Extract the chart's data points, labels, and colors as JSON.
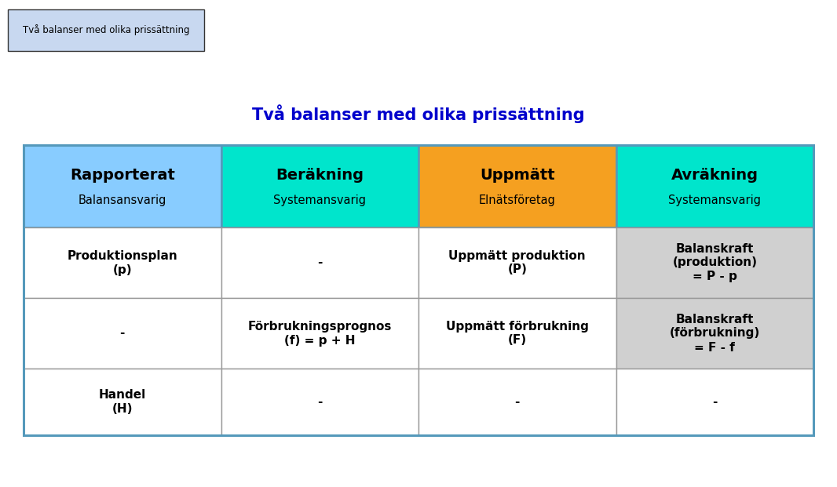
{
  "title": "Två balanser med olika prissättning",
  "title_color": "#0000CC",
  "title_fontsize": 15,
  "tab_label": "Två balanser med olika prissättning",
  "tab_bg": "#C8D8F0",
  "tab_edge": "#333333",
  "headers": [
    {
      "line1": "Rapporterat",
      "line2": "Balansansvarig",
      "bg": "#88CCFF"
    },
    {
      "line1": "Beräkning",
      "line2": "Systemansvarig",
      "bg": "#00E5CC"
    },
    {
      "line1": "Uppmätt",
      "line2": "Elnätsföretag",
      "bg": "#F5A020"
    },
    {
      "line1": "Avräkning",
      "line2": "Systemansvarig",
      "bg": "#00E5CC"
    }
  ],
  "rows": [
    [
      {
        "text": "Produktionsplan\n(p)",
        "bg": "#FFFFFF"
      },
      {
        "text": "-",
        "bg": "#FFFFFF"
      },
      {
        "text": "Uppmätt produktion\n(P)",
        "bg": "#FFFFFF"
      },
      {
        "text": "Balanskraft\n(produktion)\n= P - p",
        "bg": "#D0D0D0"
      }
    ],
    [
      {
        "text": "-",
        "bg": "#FFFFFF"
      },
      {
        "text": "Förbrukningsprognos\n(f) = p + H",
        "bg": "#FFFFFF"
      },
      {
        "text": "Uppmätt förbrukning\n(F)",
        "bg": "#FFFFFF"
      },
      {
        "text": "Balanskraft\n(förbrukning)\n= F - f",
        "bg": "#D0D0D0"
      }
    ],
    [
      {
        "text": "Handel\n(H)",
        "bg": "#FFFFFF"
      },
      {
        "text": "-",
        "bg": "#FFFFFF"
      },
      {
        "text": "-",
        "bg": "#FFFFFF"
      },
      {
        "text": "-",
        "bg": "#FFFFFF"
      }
    ]
  ],
  "border_color": "#5599BB",
  "inner_border_color": "#999999",
  "fig_bg": "#FFFFFF",
  "fig_width": 10.66,
  "fig_height": 6.21,
  "dpi": 100
}
